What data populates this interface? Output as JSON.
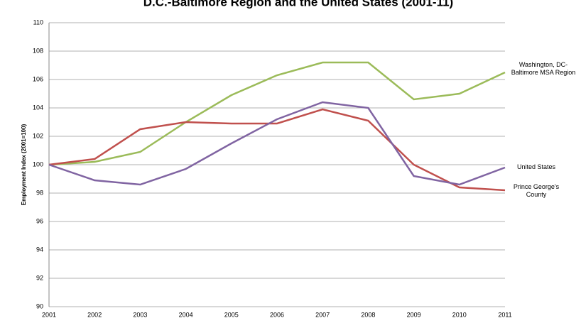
{
  "chart_data": {
    "type": "line",
    "title": "D.C.-Baltimore Region and the United States (2001-11)",
    "y_label": "Employment Index (2001=100)",
    "x": [
      2001,
      2002,
      2003,
      2004,
      2005,
      2006,
      2007,
      2008,
      2009,
      2010,
      2011
    ],
    "xlim": [
      2001,
      2011
    ],
    "xticks": [
      2001,
      2002,
      2003,
      2004,
      2005,
      2006,
      2007,
      2008,
      2009,
      2010,
      2011
    ],
    "ylim": [
      90,
      110
    ],
    "yticks": [
      90,
      92,
      94,
      96,
      98,
      100,
      102,
      104,
      106,
      108,
      110
    ],
    "grid": true,
    "series": [
      {
        "name": "Washington, DC-Baltimore MSA Region",
        "color": "#9bbb59",
        "values": [
          100,
          100.2,
          100.9,
          103.0,
          104.9,
          106.3,
          107.2,
          107.2,
          104.6,
          105.0,
          106.5
        ]
      },
      {
        "name": "Prince George's County",
        "color": "#c0504d",
        "values": [
          100,
          100.4,
          102.5,
          103.0,
          102.9,
          102.9,
          103.9,
          103.1,
          100.0,
          98.4,
          98.2
        ]
      },
      {
        "name": "United States",
        "color": "#8064a2",
        "values": [
          100,
          98.9,
          98.6,
          99.7,
          101.5,
          103.2,
          104.4,
          104.0,
          99.2,
          98.6,
          99.8
        ]
      }
    ]
  }
}
